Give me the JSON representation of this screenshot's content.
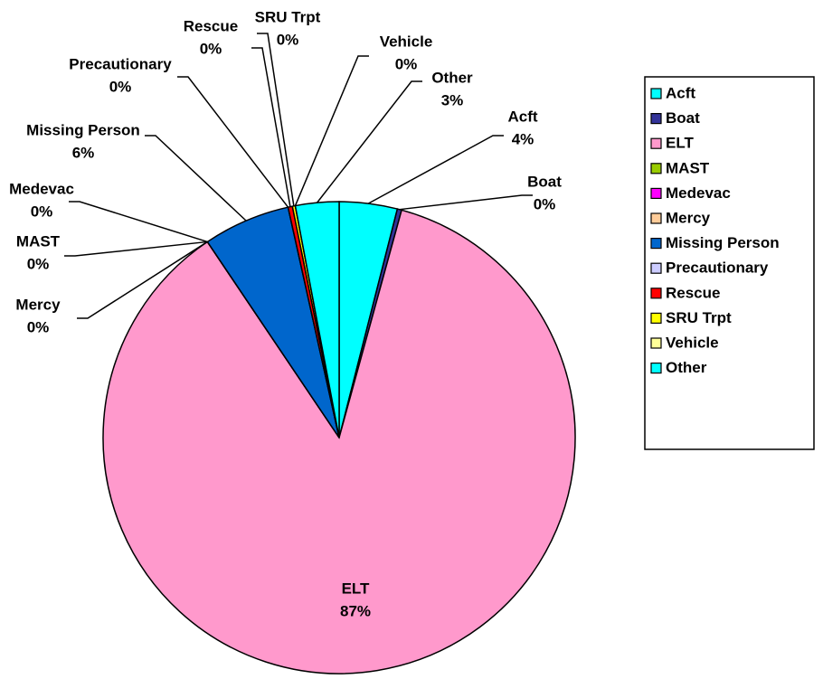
{
  "chart_data": {
    "type": "pie",
    "categories": [
      "Acft",
      "Boat",
      "ELT",
      "MAST",
      "Medevac",
      "Mercy",
      "Missing Person",
      "Precautionary",
      "Rescue",
      "SRU Trpt",
      "Vehicle",
      "Other"
    ],
    "values": [
      4,
      0.3,
      87,
      0,
      0,
      0,
      6,
      0,
      0.3,
      0.2,
      0,
      3
    ],
    "value_labels": [
      "4%",
      "0%",
      "87%",
      "0%",
      "0%",
      "0%",
      "6%",
      "0%",
      "0%",
      "0%",
      "0%",
      "3%"
    ],
    "colors": [
      "#00FFFF",
      "#333399",
      "#FF99CC",
      "#99CC00",
      "#FF00FF",
      "#FFCC99",
      "#0066CC",
      "#CCCCFF",
      "#FF0000",
      "#FFFF00",
      "#FFFF99",
      "#00FFFF"
    ],
    "legend": "right"
  }
}
